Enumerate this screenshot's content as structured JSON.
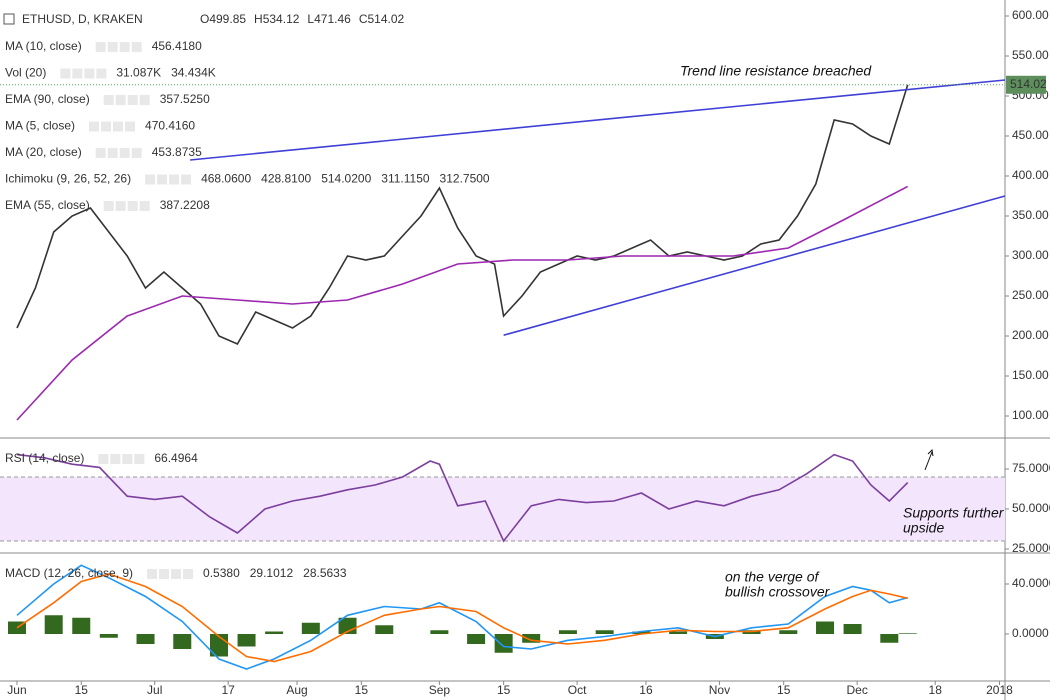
{
  "chart_data": [
    {
      "type": "line",
      "title": "ETHUSD, D, KRAKEN",
      "ohlc_labels": [
        "O499.85",
        "H534.12",
        "L471.46",
        "C514.02"
      ],
      "indicators": [
        {
          "name": "MA (10, close)",
          "values": [
            "456.4180"
          ],
          "colors": [
            "#000000"
          ]
        },
        {
          "name": "Vol (20)",
          "values": [
            "31.087K",
            "34.434K"
          ],
          "colors": [
            "#2e7d32",
            "#2196f3"
          ]
        },
        {
          "name": "EMA (90, close)",
          "values": [
            "357.5250"
          ],
          "colors": [
            "#b8860b"
          ]
        },
        {
          "name": "MA (5, close)",
          "values": [
            "470.4160"
          ],
          "colors": [
            "#e53935"
          ]
        },
        {
          "name": "MA (20, close)",
          "values": [
            "453.8735"
          ],
          "colors": [
            "#e91e63"
          ]
        },
        {
          "name": "Ichimoku (9, 26, 52, 26)",
          "values": [
            "468.0600",
            "428.8100",
            "514.0200",
            "311.1150",
            "312.7500"
          ],
          "colors": [
            "#2196f3",
            "#8b0000",
            "#2e7d32",
            "#2e7d32",
            "#e53935"
          ]
        },
        {
          "name": "EMA (55, close)",
          "values": [
            "387.2208"
          ],
          "colors": [
            "#9c27b0"
          ]
        }
      ],
      "annotation": "Trend line resistance breached",
      "last_label": "514.02",
      "xlim": [
        -3.7,
        215.2
      ],
      "ylim": [
        73.75,
        620
      ],
      "yticks": [
        {
          "value": 100,
          "label": "100.00"
        },
        {
          "value": 150,
          "label": "150.00"
        },
        {
          "value": 200,
          "label": "200.00"
        },
        {
          "value": 250,
          "label": "250.00"
        },
        {
          "value": 300,
          "label": "300.00"
        },
        {
          "value": 350,
          "label": "350.00"
        },
        {
          "value": 400,
          "label": "400.00"
        },
        {
          "value": 450,
          "label": "450.00"
        },
        {
          "value": 500,
          "label": "500.00"
        },
        {
          "value": 550,
          "label": "550.00"
        },
        {
          "value": 600,
          "label": "600.00"
        }
      ],
      "series": [
        {
          "color": "#333333",
          "x": [
            0,
            4,
            8,
            12,
            16,
            20,
            24,
            28,
            32,
            36,
            40,
            44,
            48,
            52,
            56,
            60,
            64,
            68,
            72,
            76,
            80,
            84,
            88,
            92,
            96,
            100,
            104,
            106,
            110,
            114,
            118,
            122,
            126,
            130,
            134,
            138,
            142,
            146,
            150,
            154,
            158,
            162,
            166,
            170,
            174,
            178,
            182,
            186,
            190,
            194
          ],
          "values": [
            210,
            260,
            330,
            350,
            360,
            330,
            300,
            260,
            280,
            260,
            240,
            200,
            190,
            230,
            220,
            210,
            225,
            260,
            300,
            295,
            300,
            325,
            350,
            385,
            335,
            300,
            290,
            225,
            250,
            280,
            290,
            300,
            295,
            300,
            310,
            320,
            300,
            305,
            300,
            295,
            300,
            315,
            320,
            350,
            390,
            470,
            465,
            450,
            440,
            514.02
          ]
        },
        {
          "color": "#9c27b0",
          "x": [
            0,
            12,
            24,
            36,
            48,
            60,
            72,
            84,
            96,
            108,
            120,
            132,
            144,
            156,
            168,
            180,
            194
          ],
          "values": [
            95,
            170,
            225,
            250,
            245,
            240,
            245,
            265,
            290,
            295,
            295,
            300,
            300,
            300,
            310,
            345,
            387
          ]
        }
      ],
      "trendlines": [
        {
          "color": "#3f3fd8",
          "x": [
            37.7,
            215.2
          ],
          "values": [
            420,
            520
          ]
        },
        {
          "color": "#3f3fd8",
          "x": [
            106,
            215.2
          ],
          "values": [
            201,
            375
          ]
        }
      ]
    },
    {
      "type": "line",
      "title": "RSI (14, close)",
      "value_label": "66.4964",
      "annotation": [
        "Supports further",
        "upside"
      ],
      "xlim": [
        -3.7,
        215.2
      ],
      "ylim": [
        23.1,
        93.1
      ],
      "band": [
        30,
        70
      ],
      "yticks": [
        {
          "value": 25,
          "label": "25.0000"
        },
        {
          "value": 50,
          "label": "50.0000"
        },
        {
          "value": 75,
          "label": "75.0000"
        }
      ],
      "series": [
        {
          "color": "#7b3f9e",
          "x": [
            0,
            6,
            12,
            18,
            24,
            30,
            36,
            42,
            48,
            54,
            60,
            66,
            72,
            78,
            84,
            90,
            92,
            96,
            102,
            106,
            112,
            118,
            124,
            130,
            136,
            142,
            148,
            154,
            160,
            166,
            172,
            178,
            182,
            186,
            190,
            194
          ],
          "values": [
            84,
            82,
            78,
            76,
            58,
            56,
            58,
            45,
            35,
            50,
            55,
            58,
            62,
            65,
            70,
            80,
            78,
            52,
            55,
            30,
            52,
            56,
            54,
            55,
            60,
            50,
            55,
            52,
            58,
            62,
            72,
            84,
            80,
            65,
            55,
            66.5
          ]
        }
      ]
    },
    {
      "type": "line",
      "title": "MACD (12, 26, close, 9)",
      "value_labels": [
        "0.5380",
        "29.1012",
        "28.5633"
      ],
      "value_colors": [
        "#33691e",
        "#2196f3",
        "#ff6d00"
      ],
      "annotation": [
        "on the verge of",
        "bullish crossover"
      ],
      "xlim": [
        -3.7,
        215.2
      ],
      "ylim": [
        -36.8,
        63.2
      ],
      "yticks": [
        {
          "value": 0,
          "label": "0.0000"
        },
        {
          "value": 40,
          "label": "40.0000"
        }
      ],
      "xticks": [
        {
          "value": 0,
          "label": "Jun"
        },
        {
          "value": 14,
          "label": "15"
        },
        {
          "value": 30,
          "label": "Jul"
        },
        {
          "value": 46,
          "label": "17"
        },
        {
          "value": 61,
          "label": "Aug"
        },
        {
          "value": 75,
          "label": "15"
        },
        {
          "value": 92,
          "label": "Sep"
        },
        {
          "value": 106,
          "label": "15"
        },
        {
          "value": 122,
          "label": "Oct"
        },
        {
          "value": 137,
          "label": "16"
        },
        {
          "value": 153,
          "label": "Nov"
        },
        {
          "value": 167,
          "label": "15"
        },
        {
          "value": 183,
          "label": "Dec"
        },
        {
          "value": 200,
          "label": "18"
        },
        {
          "value": 214,
          "label": "2018"
        }
      ],
      "series": [
        {
          "type": "bar",
          "color": "#33691e",
          "x": [
            0,
            8,
            14,
            20,
            28,
            36,
            44,
            50,
            56,
            64,
            72,
            80,
            88,
            92,
            100,
            106,
            112,
            120,
            128,
            136,
            144,
            152,
            160,
            168,
            176,
            182,
            186,
            190,
            194
          ],
          "values": [
            10,
            15,
            13,
            -3,
            -8,
            -12,
            -18,
            -10,
            2,
            9,
            13,
            7,
            0,
            3,
            -8,
            -15,
            -7,
            3,
            3,
            2,
            2,
            -4,
            3,
            3,
            10,
            8,
            0,
            -7,
            0.538
          ]
        },
        {
          "color": "#2196f3",
          "x": [
            0,
            8,
            14,
            20,
            28,
            36,
            44,
            50,
            56,
            64,
            72,
            80,
            88,
            92,
            100,
            106,
            112,
            120,
            128,
            136,
            144,
            152,
            160,
            168,
            176,
            182,
            186,
            190,
            194
          ],
          "values": [
            15,
            40,
            55,
            45,
            30,
            10,
            -20,
            -28,
            -20,
            -5,
            15,
            22,
            20,
            25,
            10,
            -10,
            -12,
            -5,
            -2,
            2,
            5,
            -2,
            5,
            8,
            30,
            38,
            35,
            25,
            29.1012
          ]
        },
        {
          "color": "#ff6d00",
          "x": [
            0,
            8,
            14,
            20,
            28,
            36,
            44,
            50,
            56,
            64,
            72,
            80,
            88,
            92,
            100,
            106,
            112,
            120,
            128,
            136,
            144,
            152,
            160,
            168,
            176,
            182,
            186,
            190,
            194
          ],
          "values": [
            5,
            25,
            42,
            48,
            38,
            22,
            -2,
            -18,
            -22,
            -14,
            2,
            15,
            20,
            22,
            18,
            5,
            -5,
            -8,
            -5,
            0,
            3,
            2,
            2,
            5,
            20,
            30,
            35,
            32,
            28.5633
          ]
        }
      ]
    }
  ]
}
